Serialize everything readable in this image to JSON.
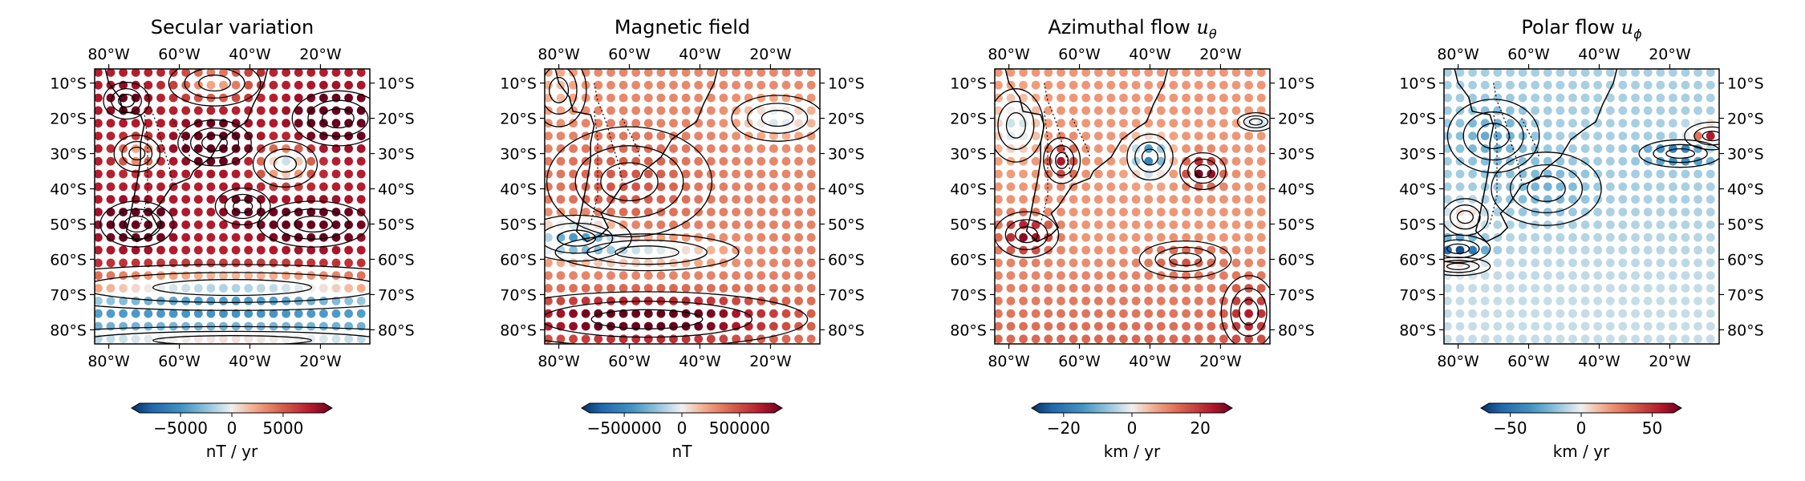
{
  "chart_data": [
    {
      "type": "heatmap",
      "title": "Secular variation",
      "title_math": "",
      "x_ticks": [
        "80°W",
        "60°W",
        "40°W",
        "20°W"
      ],
      "y_ticks": [
        "10°S",
        "20°S",
        "30°S",
        "40°S",
        "50°S",
        "60°S",
        "70°S",
        "80°S"
      ],
      "xlim_deg_west": [
        84,
        6
      ],
      "ylim_deg_south": [
        84,
        6
      ],
      "colorbar": {
        "ticks": [
          "−5000",
          "0",
          "5000"
        ],
        "tick_values": [
          -5000,
          0,
          5000
        ],
        "range": [
          -9000,
          9000
        ],
        "label": "nT / yr"
      },
      "field": {
        "background": [
          [
            70,
            7000
          ],
          [
            73,
            -3500
          ]
        ],
        "blobs": [
          [
            50,
            27,
            8,
            5,
            8500
          ],
          [
            30,
            33,
            7,
            5,
            -8000
          ],
          [
            72,
            30,
            5,
            4,
            -5500
          ],
          [
            50,
            10,
            10,
            5,
            -5000
          ],
          [
            15,
            20,
            10,
            6,
            6500
          ],
          [
            72,
            50,
            8,
            5,
            6500
          ],
          [
            22,
            50,
            12,
            5,
            6000
          ],
          [
            75,
            15,
            5,
            4,
            3500
          ],
          [
            42,
            45,
            6,
            4,
            3000
          ],
          [
            45,
            68,
            50,
            5,
            -8500
          ],
          [
            45,
            83,
            50,
            3,
            4000
          ]
        ]
      }
    },
    {
      "type": "heatmap",
      "title": "Magnetic field",
      "title_math": "",
      "x_ticks": [
        "80°W",
        "60°W",
        "40°W",
        "20°W"
      ],
      "y_ticks": [
        "10°S",
        "20°S",
        "30°S",
        "40°S",
        "50°S",
        "60°S",
        "70°S",
        "80°S"
      ],
      "xlim_deg_west": [
        84,
        6
      ],
      "ylim_deg_south": [
        84,
        6
      ],
      "colorbar": {
        "ticks": [
          "−500000",
          "0",
          "500000"
        ],
        "tick_values": [
          -500000,
          0,
          500000
        ],
        "range": [
          -800000,
          800000
        ],
        "label": "nT"
      },
      "field": {
        "background": [
          [
            20,
            280000
          ],
          [
            60,
            300000
          ]
        ],
        "blobs": [
          [
            18,
            20,
            10,
            5,
            -350000
          ],
          [
            75,
            54,
            12,
            5,
            -650000
          ],
          [
            55,
            58,
            20,
            4,
            -350000
          ],
          [
            55,
            77,
            35,
            6,
            650000
          ],
          [
            60,
            38,
            18,
            12,
            150000
          ],
          [
            80,
            12,
            6,
            8,
            -150000
          ]
        ]
      }
    },
    {
      "type": "heatmap",
      "title": "Azimuthal flow ",
      "title_math": "u",
      "title_sub": "θ",
      "x_ticks": [
        "80°W",
        "60°W",
        "40°W",
        "20°W"
      ],
      "y_ticks": [
        "10°S",
        "20°S",
        "30°S",
        "40°S",
        "50°S",
        "60°S",
        "70°S",
        "80°S"
      ],
      "xlim_deg_west": [
        84,
        6
      ],
      "ylim_deg_south": [
        84,
        6
      ],
      "colorbar": {
        "ticks": [
          "−20",
          "0",
          "20"
        ],
        "tick_values": [
          -20,
          0,
          20
        ],
        "range": [
          -27,
          27
        ],
        "label": "km / yr"
      },
      "field": {
        "background": [
          [
            55,
            8
          ],
          [
            85,
            13
          ]
        ],
        "blobs": [
          [
            40,
            31,
            5,
            5,
            -26
          ],
          [
            65,
            32,
            4,
            5,
            14
          ],
          [
            75,
            53,
            7,
            5,
            17
          ],
          [
            25,
            35,
            5,
            4,
            20
          ],
          [
            10,
            21,
            4,
            2,
            -12
          ],
          [
            78,
            22,
            6,
            8,
            -11
          ],
          [
            12,
            75,
            6,
            8,
            10
          ],
          [
            30,
            60,
            10,
            4,
            6
          ]
        ]
      }
    },
    {
      "type": "heatmap",
      "title": "Polar flow ",
      "title_math": "u",
      "title_sub": "ϕ",
      "x_ticks": [
        "80°W",
        "60°W",
        "40°W",
        "20°W"
      ],
      "y_ticks": [
        "10°S",
        "20°S",
        "30°S",
        "40°S",
        "50°S",
        "60°S",
        "70°S",
        "80°S"
      ],
      "xlim_deg_west": [
        84,
        6
      ],
      "ylim_deg_south": [
        84,
        6
      ],
      "colorbar": {
        "ticks": [
          "−50",
          "0",
          "50"
        ],
        "tick_values": [
          -50,
          0,
          50
        ],
        "range": [
          -65,
          65
        ],
        "label": "km / yr"
      },
      "field": {
        "background": [
          [
            40,
            -12
          ],
          [
            70,
            -7
          ]
        ],
        "blobs": [
          [
            8,
            25,
            6,
            3,
            65
          ],
          [
            17,
            30,
            9,
            3,
            -38
          ],
          [
            70,
            25,
            10,
            8,
            -13
          ],
          [
            80,
            57,
            7,
            3,
            -50
          ],
          [
            80,
            62,
            7,
            2,
            28
          ],
          [
            78,
            48,
            5,
            4,
            18
          ],
          [
            55,
            40,
            12,
            8,
            -10
          ]
        ]
      }
    }
  ]
}
